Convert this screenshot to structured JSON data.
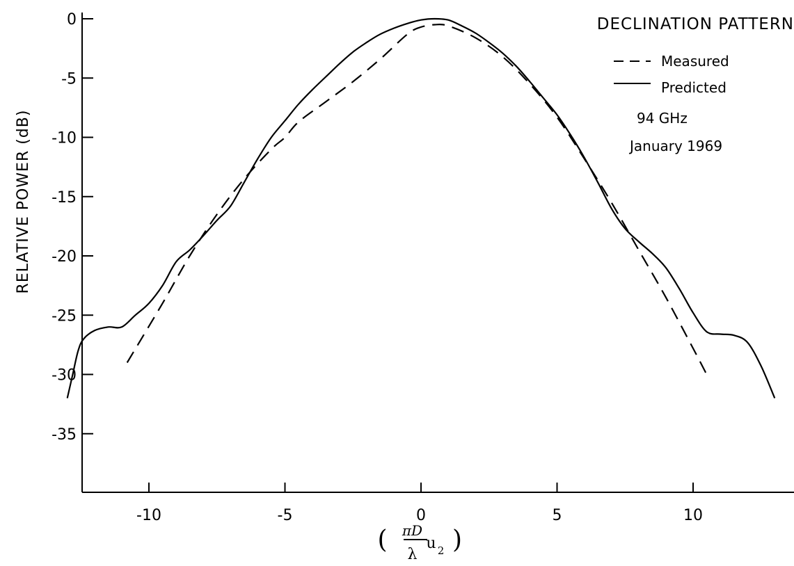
{
  "chart_data": {
    "type": "line",
    "title": "DECLINATION PATTERN",
    "xlabel": {
      "pi_d": "πD",
      "lambda": "λ",
      "u": "u",
      "sub": "2"
    },
    "ylabel": "RELATIVE POWER (dB)",
    "xlim": [
      -13,
      13
    ],
    "ylim": [
      -40,
      0
    ],
    "xticks": [
      {
        "value": -10,
        "label": "-10"
      },
      {
        "value": -5,
        "label": "-5"
      },
      {
        "value": 0,
        "label": "0"
      },
      {
        "value": 5,
        "label": "5"
      },
      {
        "value": 10,
        "label": "10"
      }
    ],
    "yticks": [
      {
        "value": 0,
        "label": "0"
      },
      {
        "value": -5,
        "label": "-5"
      },
      {
        "value": -10,
        "label": "-10"
      },
      {
        "value": -15,
        "label": "-15"
      },
      {
        "value": -20,
        "label": "-20"
      },
      {
        "value": -25,
        "label": "-25"
      },
      {
        "value": -30,
        "label": "-30"
      },
      {
        "value": -35,
        "label": "-35"
      }
    ],
    "grid": false,
    "legend_position": "top-right",
    "annotations": [
      "94 GHz",
      "January 1969"
    ],
    "series": [
      {
        "name": "Measured",
        "style": "dashed",
        "color": "#000000",
        "x": [
          -10.8,
          -9.5,
          -8.5,
          -7.5,
          -6.5,
          -5.5,
          -5.0,
          -4.5,
          -3.5,
          -2.5,
          -1.5,
          -0.5,
          0.0,
          0.5,
          1.0,
          2.0,
          3.0,
          4.0,
          5.0,
          6.0,
          7.0,
          8.0,
          9.0,
          10.0,
          10.5
        ],
        "values": [
          -29.0,
          -24.0,
          -20.0,
          -16.5,
          -13.5,
          -11.0,
          -10.0,
          -8.7,
          -7.0,
          -5.3,
          -3.4,
          -1.3,
          -0.7,
          -0.5,
          -0.6,
          -1.6,
          -3.2,
          -5.5,
          -8.3,
          -11.8,
          -15.5,
          -19.5,
          -23.5,
          -27.8,
          -30.0
        ]
      },
      {
        "name": "Predicted",
        "style": "solid",
        "color": "#000000",
        "x": [
          -13.0,
          -12.8,
          -12.6,
          -12.4,
          -12.0,
          -11.5,
          -11.0,
          -10.5,
          -10.0,
          -9.5,
          -9.0,
          -8.5,
          -8.0,
          -7.5,
          -7.0,
          -6.5,
          -6.0,
          -5.5,
          -5.0,
          -4.5,
          -4.0,
          -3.5,
          -3.0,
          -2.5,
          -2.0,
          -1.5,
          -1.0,
          -0.5,
          0.0,
          0.5,
          1.0,
          1.5,
          2.0,
          2.5,
          3.0,
          3.5,
          4.0,
          4.5,
          5.0,
          5.5,
          6.0,
          6.5,
          7.0,
          7.5,
          8.0,
          8.5,
          9.0,
          9.5,
          10.0,
          10.5,
          11.0,
          11.5,
          12.0,
          12.5,
          13.0
        ],
        "values": [
          -32.0,
          -30.0,
          -28.0,
          -27.0,
          -26.3,
          -26.0,
          -26.0,
          -25.0,
          -24.0,
          -22.5,
          -20.5,
          -19.5,
          -18.3,
          -17.0,
          -15.8,
          -13.8,
          -11.8,
          -10.0,
          -8.6,
          -7.2,
          -6.0,
          -4.9,
          -3.8,
          -2.8,
          -2.0,
          -1.3,
          -0.8,
          -0.4,
          -0.1,
          0.0,
          -0.1,
          -0.6,
          -1.2,
          -2.0,
          -2.9,
          -4.0,
          -5.3,
          -6.7,
          -8.1,
          -9.8,
          -11.7,
          -13.8,
          -16.0,
          -17.7,
          -18.8,
          -19.8,
          -21.0,
          -22.8,
          -24.8,
          -26.4,
          -26.6,
          -26.7,
          -27.3,
          -29.3,
          -32.0
        ]
      }
    ]
  }
}
